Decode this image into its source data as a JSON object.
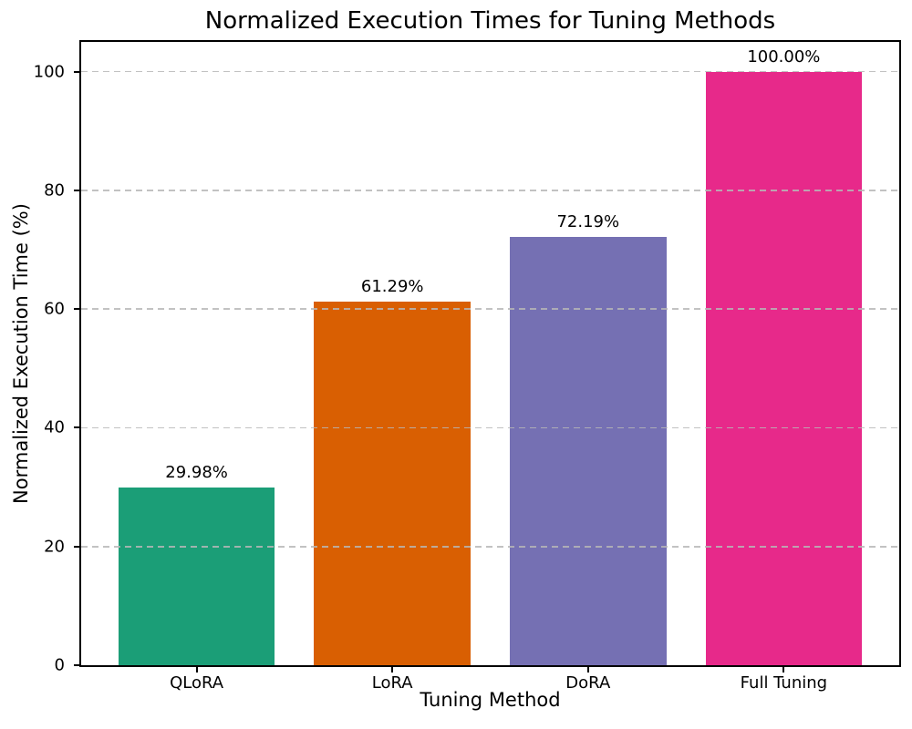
{
  "chart_data": {
    "type": "bar",
    "title": "Normalized Execution Times for Tuning Methods",
    "xlabel": "Tuning Method",
    "ylabel": "Normalized Execution Time (%)",
    "categories": [
      "QLoRA",
      "LoRA",
      "DoRA",
      "Full Tuning"
    ],
    "values": [
      29.98,
      61.29,
      72.19,
      100.0
    ],
    "value_labels": [
      "29.98%",
      "61.29%",
      "72.19%",
      "100.00%"
    ],
    "bar_colors": [
      "#1b9e77",
      "#d95f02",
      "#7570b3",
      "#e7298a"
    ],
    "yticks": [
      0,
      20,
      40,
      60,
      80,
      100
    ],
    "ylim": [
      0,
      105
    ],
    "grid": "horizontal-dashed",
    "grid_color": "#b7b7b7",
    "legend": "none",
    "background_color": "#ffffff",
    "spine_color": "#000000"
  }
}
